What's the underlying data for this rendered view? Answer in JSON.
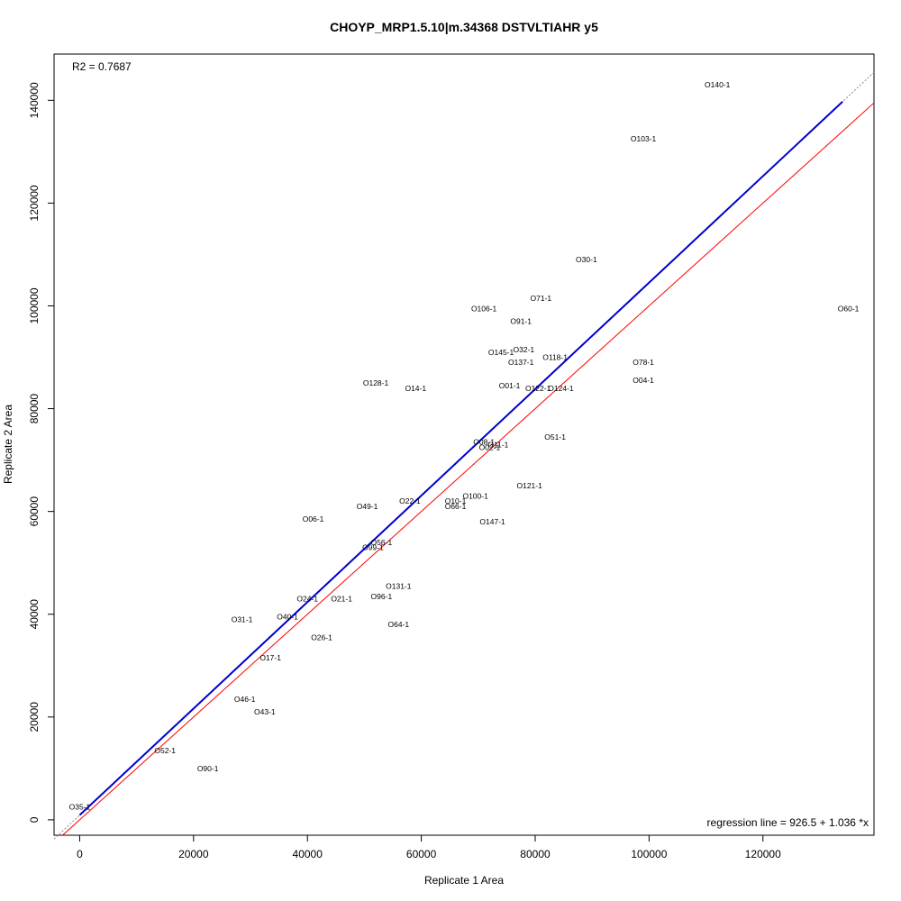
{
  "chart_data": {
    "type": "scatter",
    "title": "CHOYP_MRP1.5.10|m.34368 DSTVLTIAHR y5",
    "xlabel": "Replicate 1 Area",
    "ylabel": "Replicate 2 Area",
    "xlim": [
      -4500,
      139500
    ],
    "ylim": [
      -3000,
      149000
    ],
    "x_ticks": [
      0,
      20000,
      40000,
      60000,
      80000,
      100000,
      120000
    ],
    "x_tick_labels": [
      "0",
      "20000",
      "40000",
      "60000",
      "80000",
      "100000",
      "120000"
    ],
    "y_ticks": [
      0,
      20000,
      40000,
      60000,
      80000,
      100000,
      120000,
      140000
    ],
    "y_tick_labels": [
      "0",
      "20000",
      "40000",
      "60000",
      "80000",
      "100000",
      "120000",
      "140000"
    ],
    "r2_label": "R2 = 0.7687",
    "regression_label": "regression line = 926.5 + 1.036 *x",
    "regression": {
      "intercept": 926.5,
      "slope": 1.036,
      "x_range": [
        0,
        134000
      ],
      "color": "#0000cc"
    },
    "identity_line": {
      "intercept": 0,
      "slope": 1,
      "color": "#ff0000"
    },
    "points": [
      {
        "label": "O140-1",
        "x": 112000,
        "y": 143000
      },
      {
        "label": "O103-1",
        "x": 99000,
        "y": 132500
      },
      {
        "label": "O30-1",
        "x": 89000,
        "y": 109000
      },
      {
        "label": "O71-1",
        "x": 81000,
        "y": 101500
      },
      {
        "label": "O60-1",
        "x": 135000,
        "y": 99500
      },
      {
        "label": "O106-1",
        "x": 71000,
        "y": 99500
      },
      {
        "label": "O91-1",
        "x": 77500,
        "y": 97000
      },
      {
        "label": "O32-1",
        "x": 78000,
        "y": 91500
      },
      {
        "label": "O145-1",
        "x": 74000,
        "y": 91000
      },
      {
        "label": "O118-1",
        "x": 83500,
        "y": 90000
      },
      {
        "label": "O78-1",
        "x": 99000,
        "y": 89000
      },
      {
        "label": "O137-1",
        "x": 77500,
        "y": 89000
      },
      {
        "label": "O04-1",
        "x": 99000,
        "y": 85500
      },
      {
        "label": "O128-1",
        "x": 52000,
        "y": 85000
      },
      {
        "label": "O01-1",
        "x": 75500,
        "y": 84500
      },
      {
        "label": "O122-1",
        "x": 80500,
        "y": 84000
      },
      {
        "label": "O124-1",
        "x": 84500,
        "y": 84000
      },
      {
        "label": "O14-1",
        "x": 59000,
        "y": 84000
      },
      {
        "label": "O51-1",
        "x": 83500,
        "y": 74500
      },
      {
        "label": "O08-1",
        "x": 71000,
        "y": 73500
      },
      {
        "label": "O11-1",
        "x": 73500,
        "y": 73000
      },
      {
        "label": "O02-1",
        "x": 72000,
        "y": 72500
      },
      {
        "label": "O121-1",
        "x": 79000,
        "y": 65000
      },
      {
        "label": "O100-1",
        "x": 69500,
        "y": 63000
      },
      {
        "label": "O10-1",
        "x": 66000,
        "y": 62000
      },
      {
        "label": "O22-1",
        "x": 58000,
        "y": 62000
      },
      {
        "label": "O66-1",
        "x": 66000,
        "y": 61000
      },
      {
        "label": "O49-1",
        "x": 50500,
        "y": 61000
      },
      {
        "label": "O06-1",
        "x": 41000,
        "y": 58500
      },
      {
        "label": "O147-1",
        "x": 72500,
        "y": 58000
      },
      {
        "label": "O56-1",
        "x": 53000,
        "y": 54000
      },
      {
        "label": "O99-1",
        "x": 51500,
        "y": 53000
      },
      {
        "label": "O131-1",
        "x": 56000,
        "y": 45500
      },
      {
        "label": "O24-1",
        "x": 40000,
        "y": 43000
      },
      {
        "label": "O21-1",
        "x": 46000,
        "y": 43000
      },
      {
        "label": "O96-1",
        "x": 53000,
        "y": 43500
      },
      {
        "label": "O40-1",
        "x": 36500,
        "y": 39500
      },
      {
        "label": "O31-1",
        "x": 28500,
        "y": 39000
      },
      {
        "label": "O64-1",
        "x": 56000,
        "y": 38000
      },
      {
        "label": "O26-1",
        "x": 42500,
        "y": 35500
      },
      {
        "label": "O17-1",
        "x": 33500,
        "y": 31500
      },
      {
        "label": "O46-1",
        "x": 29000,
        "y": 23500
      },
      {
        "label": "O43-1",
        "x": 32500,
        "y": 21000
      },
      {
        "label": "O52-1",
        "x": 15000,
        "y": 13500
      },
      {
        "label": "O90-1",
        "x": 22500,
        "y": 10000
      },
      {
        "label": "O35-1",
        "x": 0,
        "y": 2500
      }
    ]
  }
}
